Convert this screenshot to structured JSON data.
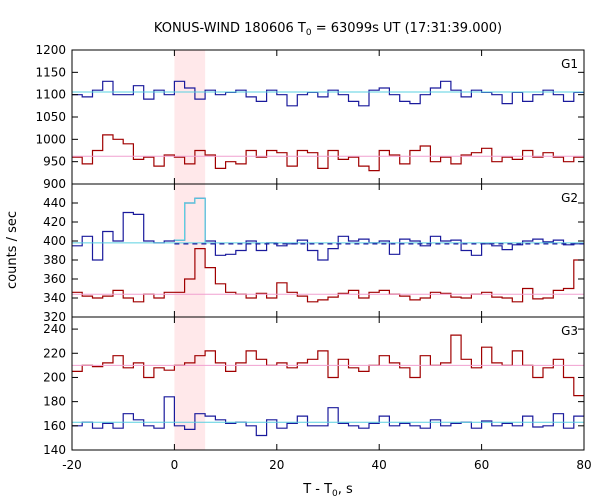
{
  "chart_data": {
    "type": "line",
    "title_main": "KONUS-WIND 180606 T",
    "title_sub": "0",
    "title_rest": " = 63099s UT (17:31:39.000)",
    "ylabel": "counts / sec",
    "xlabel_main": "T - T",
    "xlabel_sub": "0",
    "xlabel_rest": ", s",
    "xlim": [
      -20,
      80
    ],
    "x_ticks": [
      -20,
      0,
      20,
      40,
      60,
      80
    ],
    "highlight": {
      "x_start": 0,
      "x_end": 6,
      "color": "#ffe8ea"
    },
    "colors": {
      "blue": "#1a1a9c",
      "red": "#a00000",
      "cyan": "#5ad0e0",
      "pink": "#f0a0d0",
      "highlight": "#ffe8ea"
    },
    "panels": [
      {
        "name": "G1",
        "ylim": [
          900,
          1200
        ],
        "y_ticks": [
          900,
          950,
          1000,
          1050,
          1100,
          1150,
          1200
        ],
        "bin_edges": [
          -20,
          -18,
          -16,
          -14,
          -12,
          -10,
          -8,
          -6,
          -4,
          -2,
          0,
          2,
          4,
          6,
          8,
          10,
          12,
          14,
          16,
          18,
          20,
          22,
          24,
          26,
          28,
          30,
          32,
          34,
          36,
          38,
          40,
          42,
          44,
          46,
          48,
          50,
          52,
          54,
          56,
          58,
          60,
          62,
          64,
          66,
          68,
          70,
          72,
          74,
          76,
          78,
          80
        ],
        "series": [
          {
            "name": "",
            "color": "blue",
            "values": [
              1100,
              1095,
              1110,
              1130,
              1100,
              1100,
              1120,
              1090,
              1110,
              1100,
              1130,
              1115,
              1090,
              1110,
              1100,
              1105,
              1110,
              1095,
              1085,
              1110,
              1100,
              1075,
              1100,
              1105,
              1095,
              1110,
              1100,
              1085,
              1075,
              1110,
              1115,
              1100,
              1085,
              1080,
              1100,
              1115,
              1130,
              1110,
              1095,
              1110,
              1105,
              1100,
              1080,
              1105,
              1085,
              1100,
              1110,
              1100,
              1085,
              1105
            ],
            "fit": 1106,
            "fit_color": "cyan"
          },
          {
            "name": "",
            "color": "red",
            "values": [
              960,
              945,
              975,
              1010,
              1000,
              990,
              955,
              960,
              940,
              965,
              960,
              945,
              975,
              965,
              935,
              950,
              945,
              975,
              960,
              975,
              970,
              940,
              975,
              970,
              935,
              975,
              955,
              960,
              940,
              930,
              975,
              965,
              945,
              975,
              985,
              950,
              960,
              945,
              965,
              970,
              980,
              950,
              960,
              955,
              975,
              960,
              970,
              960,
              950,
              960
            ],
            "fit": 962,
            "fit_color": "pink"
          }
        ]
      },
      {
        "name": "G2",
        "ylim": [
          320,
          460
        ],
        "y_ticks": [
          320,
          340,
          360,
          380,
          400,
          420,
          440
        ],
        "bin_edges": [
          -20,
          -18,
          -16,
          -14,
          -12,
          -10,
          -8,
          -6,
          -4,
          -2,
          0,
          2,
          4,
          6,
          8,
          10,
          12,
          14,
          16,
          18,
          20,
          22,
          24,
          26,
          28,
          30,
          32,
          34,
          36,
          38,
          40,
          42,
          44,
          46,
          48,
          50,
          52,
          54,
          56,
          58,
          60,
          62,
          64,
          66,
          68,
          70,
          72,
          74,
          76,
          78,
          80
        ],
        "series": [
          {
            "name": "",
            "color": "blue",
            "values": [
              395,
              405,
              380,
              410,
              400,
              430,
              428,
              400,
              398,
              400,
              401,
              440,
              445,
              400,
              385,
              386,
              390,
              400,
              390,
              398,
              395,
              397,
              401,
              390,
              380,
              392,
              405,
              400,
              402,
              398,
              400,
              386,
              402,
              400,
              395,
              405,
              400,
              401,
              390,
              385,
              397,
              395,
              391,
              396,
              400,
              402,
              399,
              401,
              396,
              397
            ],
            "fit": 398,
            "fit_color": "cyan"
          },
          {
            "name": "",
            "color": "red",
            "values": [
              346,
              342,
              340,
              342,
              348,
              340,
              336,
              344,
              340,
              346,
              346,
              360,
              392,
              372,
              355,
              346,
              344,
              340,
              345,
              340,
              356,
              346,
              342,
              336,
              338,
              341,
              345,
              348,
              340,
              346,
              348,
              344,
              342,
              338,
              340,
              346,
              345,
              341,
              340,
              344,
              346,
              341,
              340,
              336,
              350,
              339,
              340,
              348,
              350,
              380
            ],
            "fit": 344,
            "fit_color": "pink",
            "dashed_ext": 397
          }
        ]
      },
      {
        "name": "G3",
        "ylim": [
          140,
          250
        ],
        "y_ticks": [
          140,
          160,
          180,
          200,
          220,
          240
        ],
        "bin_edges": [
          -20,
          -18,
          -16,
          -14,
          -12,
          -10,
          -8,
          -6,
          -4,
          -2,
          0,
          2,
          4,
          6,
          8,
          10,
          12,
          14,
          16,
          18,
          20,
          22,
          24,
          26,
          28,
          30,
          32,
          34,
          36,
          38,
          40,
          42,
          44,
          46,
          48,
          50,
          52,
          54,
          56,
          58,
          60,
          62,
          64,
          66,
          68,
          70,
          72,
          74,
          76,
          78,
          80
        ],
        "series": [
          {
            "name": "",
            "color": "blue",
            "values": [
              160,
              163,
              158,
              162,
              158,
              170,
              165,
              160,
              158,
              184,
              160,
              157,
              170,
              168,
              165,
              162,
              163,
              160,
              152,
              165,
              158,
              162,
              168,
              160,
              160,
              175,
              162,
              160,
              158,
              162,
              168,
              160,
              162,
              160,
              158,
              165,
              160,
              162,
              163,
              158,
              164,
              160,
              162,
              160,
              168,
              159,
              160,
              170,
              158,
              168
            ],
            "fit": 163,
            "fit_color": "cyan"
          },
          {
            "name": "",
            "color": "red",
            "values": [
              205,
              210,
              209,
              212,
              218,
              208,
              212,
              200,
              208,
              206,
              210,
              212,
              218,
              222,
              212,
              205,
              212,
              222,
              215,
              210,
              212,
              208,
              212,
              215,
              222,
              200,
              215,
              208,
              205,
              210,
              218,
              212,
              208,
              200,
              218,
              210,
              212,
              235,
              215,
              208,
              225,
              212,
              210,
              222,
              210,
              200,
              208,
              215,
              200,
              185
            ],
            "fit": 210,
            "fit_color": "pink"
          }
        ]
      }
    ]
  }
}
